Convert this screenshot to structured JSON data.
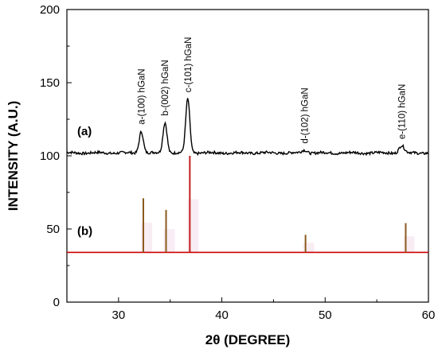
{
  "chart_data": {
    "type": "line",
    "title": "",
    "xlabel": "2θ (DEGREE)",
    "ylabel": "INTENSITY (A.U.)",
    "xlim": [
      25,
      60
    ],
    "ylim": [
      0,
      200
    ],
    "x_ticks": [
      30,
      40,
      50,
      60
    ],
    "y_ticks": [
      0,
      50,
      100,
      150,
      200
    ],
    "grid": false,
    "series": [
      {
        "label": "(a)",
        "kind": "xrd-pattern",
        "baseline": 102,
        "color": "#000000",
        "peaks": [
          {
            "x": 32.2,
            "y": 117,
            "label": "a-(100) hGaN"
          },
          {
            "x": 34.5,
            "y": 123,
            "label": "b-(002) hGaN"
          },
          {
            "x": 36.7,
            "y": 139,
            "label": "c-(101) hGaN"
          },
          {
            "x": 48.0,
            "y": 104,
            "label": "d-(102) hGaN"
          },
          {
            "x": 57.4,
            "y": 107,
            "label": "e-(110) hGaN"
          }
        ]
      },
      {
        "label": "(b)",
        "kind": "reference-sticks",
        "baseline": 34,
        "baseline_color": "#cc0000",
        "stick_color": "#8a5a1e",
        "sticks": [
          {
            "x": 32.4,
            "y": 71
          },
          {
            "x": 34.6,
            "y": 63
          },
          {
            "x": 36.9,
            "y": 100
          },
          {
            "x": 48.1,
            "y": 46
          },
          {
            "x": 57.8,
            "y": 54
          }
        ]
      }
    ]
  }
}
